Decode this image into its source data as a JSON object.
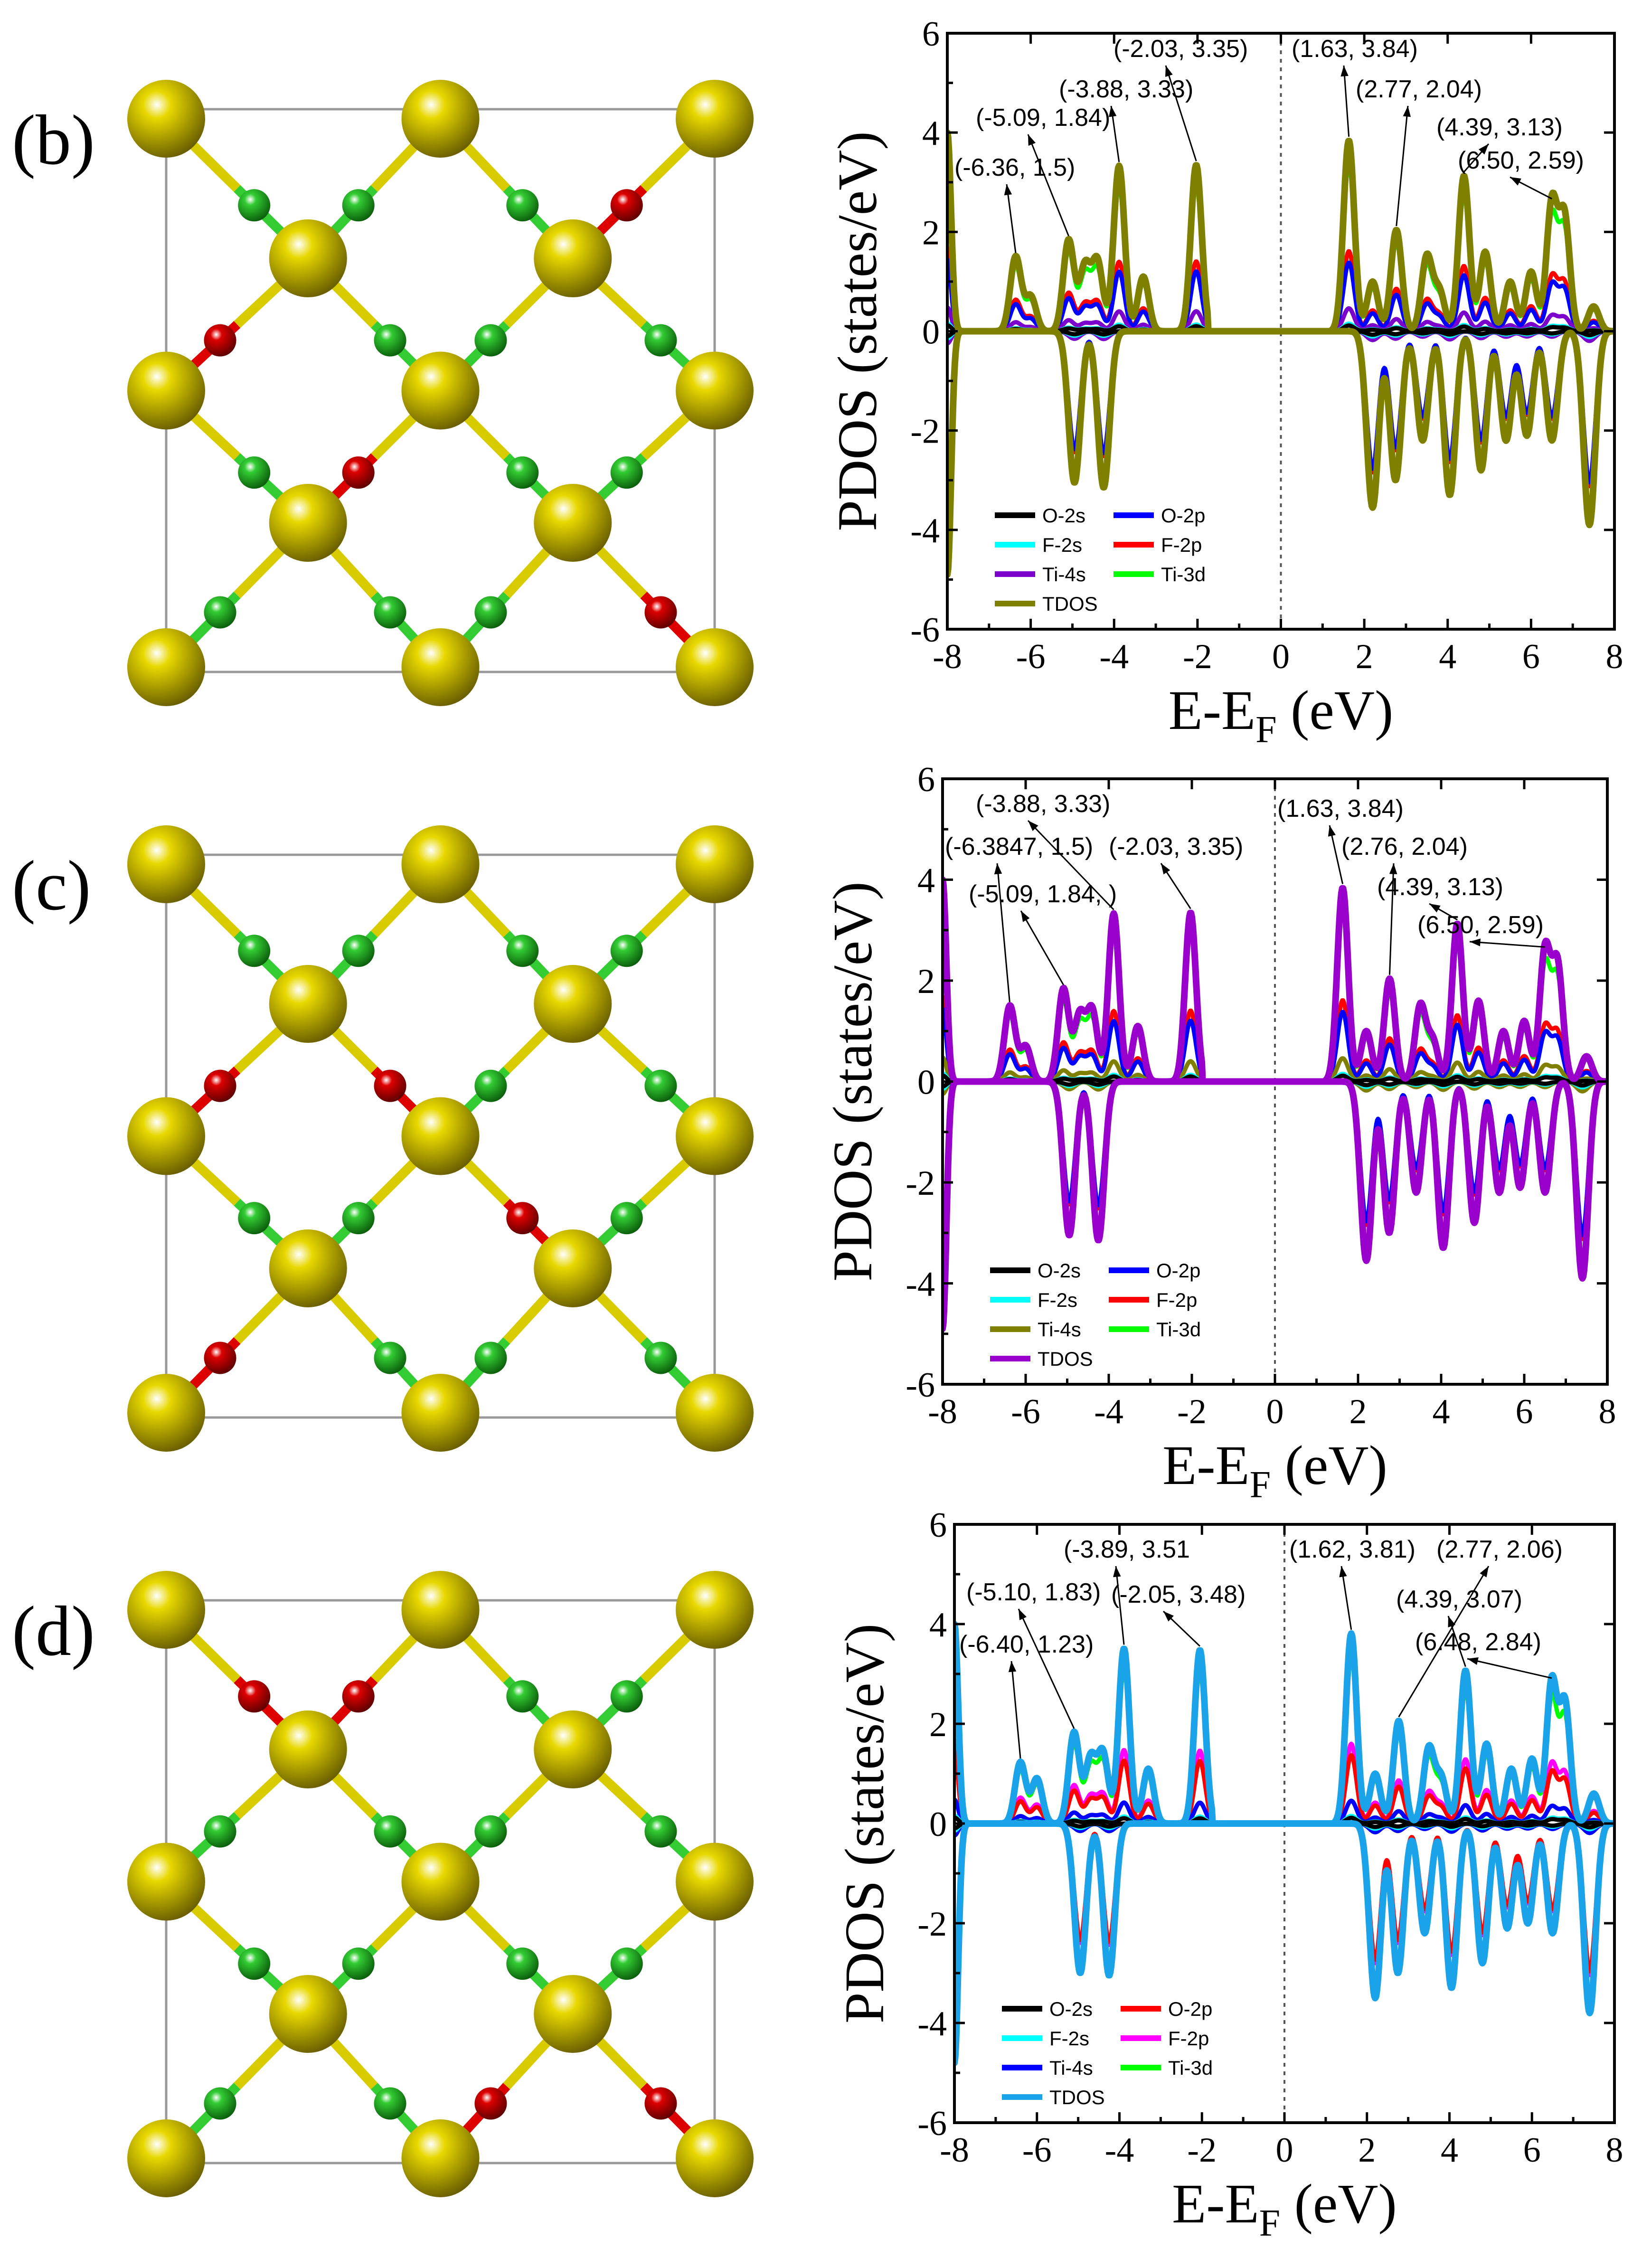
{
  "colors": {
    "O-2s": "#000000",
    "O-2p_b": "#0000ff",
    "F-2s": "#00ffff",
    "F-2p_b": "#ff0000",
    "Ti-4s_b": "#7b00cc",
    "Ti-3d": "#00ff00",
    "TDOS_b": "#808000",
    "Ti-4s_c": "#808000",
    "TDOS_c": "#9900cc",
    "O-2p_d": "#ff0000",
    "F-2p_d": "#ff00ff",
    "Ti-4s_d": "#0000ff",
    "TDOS_d": "#1aa3e8",
    "atom_Ti": "#e8d800",
    "atom_C": "#33cc33",
    "atom_O": "#dd0000"
  },
  "structures": [
    {
      "label": "(b)",
      "description_id": "struct-b"
    },
    {
      "label": "(c)",
      "description_id": "struct-c"
    },
    {
      "label": "(d)",
      "description_id": "struct-d"
    }
  ],
  "chart_data": [
    {
      "type": "line",
      "panel": "(b)",
      "xlabel": "E-E_F (eV)",
      "ylabel": "PDOS (states/eV)",
      "xlim": [
        -8,
        8
      ],
      "ylim": [
        -6,
        6
      ],
      "xticks": [
        -8,
        -6,
        -4,
        -2,
        0,
        2,
        4,
        6,
        8
      ],
      "yticks": [
        -6,
        -4,
        -2,
        0,
        2,
        4,
        6
      ],
      "legend": [
        "O-2s",
        "O-2p",
        "F-2s",
        "F-2p",
        "Ti-4s",
        "Ti-3d",
        "TDOS"
      ],
      "legend_colors": [
        "#000000",
        "#0000ff",
        "#00ffff",
        "#ff0000",
        "#7b00cc",
        "#00ff00",
        "#808000"
      ],
      "tdos_color": "#808000",
      "annotations": [
        {
          "text": "(-6.36, 1.5)",
          "x": -6.36,
          "y": 1.5
        },
        {
          "text": "(-5.09, 1.84)",
          "x": -5.09,
          "y": 1.84
        },
        {
          "text": "(-3.88, 3.33)",
          "x": -3.88,
          "y": 3.33
        },
        {
          "text": "(-2.03, 3.35)",
          "x": -2.03,
          "y": 3.35
        },
        {
          "text": "(1.63, 3.84)",
          "x": 1.63,
          "y": 3.84
        },
        {
          "text": "(2.77, 2.04)",
          "x": 2.77,
          "y": 2.04
        },
        {
          "text": "(4.39, 3.13)",
          "x": 4.39,
          "y": 3.13
        },
        {
          "text": "(6.50, 2.59)",
          "x": 6.5,
          "y": 2.59
        }
      ],
      "tdos_up_peaks": [
        [
          -6.36,
          1.5
        ],
        [
          -6.0,
          0.7
        ],
        [
          -5.09,
          1.84
        ],
        [
          -4.7,
          1.3
        ],
        [
          -4.4,
          1.4
        ],
        [
          -3.88,
          3.33
        ],
        [
          -3.3,
          1.1
        ],
        [
          -2.03,
          3.35
        ],
        [
          1.63,
          3.84
        ],
        [
          2.2,
          1.0
        ],
        [
          2.77,
          2.04
        ],
        [
          3.5,
          1.5
        ],
        [
          3.8,
          0.8
        ],
        [
          4.39,
          3.13
        ],
        [
          4.9,
          1.6
        ],
        [
          5.5,
          1.0
        ],
        [
          6.0,
          1.2
        ],
        [
          6.5,
          2.59
        ],
        [
          6.8,
          2.3
        ],
        [
          7.5,
          0.5
        ]
      ],
      "tdos_down_peaks": [
        [
          -7.95,
          -4.9
        ],
        [
          -4.95,
          -3.05
        ],
        [
          -4.25,
          -3.15
        ],
        [
          2.2,
          -3.55
        ],
        [
          2.75,
          -3.0
        ],
        [
          3.4,
          -2.2
        ],
        [
          4.05,
          -3.3
        ],
        [
          4.8,
          -2.8
        ],
        [
          5.4,
          -2.2
        ],
        [
          5.9,
          -2.1
        ],
        [
          6.5,
          -2.2
        ],
        [
          7.4,
          -3.9
        ]
      ]
    },
    {
      "type": "line",
      "panel": "(c)",
      "xlabel": "E-E_F (eV)",
      "ylabel": "PDOS (states/eV)",
      "xlim": [
        -8,
        8
      ],
      "ylim": [
        -6,
        6
      ],
      "xticks": [
        -8,
        -6,
        -4,
        -2,
        0,
        2,
        4,
        6,
        8
      ],
      "yticks": [
        -6,
        -4,
        -2,
        0,
        2,
        4,
        6
      ],
      "legend": [
        "O-2s",
        "O-2p",
        "F-2s",
        "F-2p",
        "Ti-4s",
        "Ti-3d",
        "TDOS"
      ],
      "legend_colors": [
        "#000000",
        "#0000ff",
        "#00ffff",
        "#ff0000",
        "#808000",
        "#00ff00",
        "#9900cc"
      ],
      "tdos_color": "#9900cc",
      "annotations": [
        {
          "text": "(-3.88, 3.33)",
          "x": -3.88,
          "y": 3.33
        },
        {
          "text": "(-6.3847, 1.5)",
          "x": -6.3847,
          "y": 1.5
        },
        {
          "text": "(-2.03, 3.35)",
          "x": -2.03,
          "y": 3.35
        },
        {
          "text": "(-5.09, 1.84, )",
          "x": -5.09,
          "y": 1.84
        },
        {
          "text": "(1.63, 3.84)",
          "x": 1.63,
          "y": 3.84
        },
        {
          "text": "(2.76, 2.04)",
          "x": 2.76,
          "y": 2.04
        },
        {
          "text": "(4.39, 3.13)",
          "x": 4.39,
          "y": 3.13
        },
        {
          "text": "(6.50, 2.59)",
          "x": 6.5,
          "y": 2.59
        }
      ],
      "tdos_up_peaks": [
        [
          -6.38,
          1.5
        ],
        [
          -6.0,
          0.7
        ],
        [
          -5.09,
          1.84
        ],
        [
          -4.7,
          1.3
        ],
        [
          -4.4,
          1.4
        ],
        [
          -3.88,
          3.33
        ],
        [
          -3.3,
          1.1
        ],
        [
          -2.03,
          3.35
        ],
        [
          1.63,
          3.84
        ],
        [
          2.2,
          1.0
        ],
        [
          2.76,
          2.04
        ],
        [
          3.5,
          1.5
        ],
        [
          3.8,
          0.8
        ],
        [
          4.39,
          3.13
        ],
        [
          4.9,
          1.6
        ],
        [
          5.5,
          1.0
        ],
        [
          6.0,
          1.2
        ],
        [
          6.5,
          2.59
        ],
        [
          6.8,
          2.3
        ],
        [
          7.5,
          0.5
        ]
      ],
      "tdos_down_peaks": [
        [
          -7.95,
          -4.9
        ],
        [
          -4.95,
          -3.05
        ],
        [
          -4.25,
          -3.15
        ],
        [
          2.2,
          -3.55
        ],
        [
          2.75,
          -3.0
        ],
        [
          3.4,
          -2.2
        ],
        [
          4.05,
          -3.3
        ],
        [
          4.8,
          -2.8
        ],
        [
          5.4,
          -2.2
        ],
        [
          5.9,
          -2.1
        ],
        [
          6.5,
          -2.2
        ],
        [
          7.4,
          -3.9
        ]
      ]
    },
    {
      "type": "line",
      "panel": "(d)",
      "xlabel": "E-E_F (eV)",
      "ylabel": "PDOS (states/eV)",
      "xlim": [
        -8,
        8
      ],
      "ylim": [
        -6,
        6
      ],
      "xticks": [
        -8,
        -6,
        -4,
        -2,
        0,
        2,
        4,
        6,
        8
      ],
      "yticks": [
        -6,
        -4,
        -2,
        0,
        2,
        4,
        6
      ],
      "legend": [
        "O-2s",
        "O-2p",
        "F-2s",
        "F-2p",
        "Ti-4s",
        "Ti-3d",
        "TDOS"
      ],
      "legend_colors": [
        "#000000",
        "#ff0000",
        "#00ffff",
        "#ff00ff",
        "#0000ff",
        "#00ff00",
        "#1aa3e8"
      ],
      "tdos_color": "#1aa3e8",
      "annotations": [
        {
          "text": "(-5.10, 1.83)",
          "x": -5.1,
          "y": 1.83
        },
        {
          "text": "(-3.89, 3.51",
          "x": -3.89,
          "y": 3.51
        },
        {
          "text": "(-2.05, 3.48)",
          "x": -2.05,
          "y": 3.48
        },
        {
          "text": "(-6.40, 1.23)",
          "x": -6.4,
          "y": 1.23
        },
        {
          "text": "(1.62, 3.81)",
          "x": 1.62,
          "y": 3.81
        },
        {
          "text": "(2.77, 2.06)",
          "x": 2.77,
          "y": 2.06
        },
        {
          "text": "(4.39, 3.07)",
          "x": 4.39,
          "y": 3.07
        },
        {
          "text": "(6.48, 2.84)",
          "x": 6.48,
          "y": 2.84
        }
      ],
      "tdos_up_peaks": [
        [
          -6.4,
          1.23
        ],
        [
          -6.0,
          0.9
        ],
        [
          -5.1,
          1.83
        ],
        [
          -4.7,
          1.3
        ],
        [
          -4.4,
          1.4
        ],
        [
          -3.89,
          3.51
        ],
        [
          -3.3,
          1.1
        ],
        [
          -2.05,
          3.48
        ],
        [
          1.62,
          3.81
        ],
        [
          2.2,
          1.0
        ],
        [
          2.77,
          2.06
        ],
        [
          3.5,
          1.5
        ],
        [
          3.8,
          0.9
        ],
        [
          4.39,
          3.07
        ],
        [
          4.9,
          1.6
        ],
        [
          5.5,
          1.1
        ],
        [
          6.0,
          1.3
        ],
        [
          6.48,
          2.84
        ],
        [
          6.8,
          2.4
        ],
        [
          7.5,
          0.6
        ]
      ],
      "tdos_down_peaks": [
        [
          -7.95,
          -4.8
        ],
        [
          -4.95,
          -3.0
        ],
        [
          -4.25,
          -3.05
        ],
        [
          2.2,
          -3.5
        ],
        [
          2.75,
          -3.0
        ],
        [
          3.4,
          -2.2
        ],
        [
          4.05,
          -3.3
        ],
        [
          4.8,
          -2.8
        ],
        [
          5.4,
          -2.1
        ],
        [
          5.9,
          -2.0
        ],
        [
          6.5,
          -2.2
        ],
        [
          7.4,
          -3.8
        ]
      ]
    }
  ]
}
